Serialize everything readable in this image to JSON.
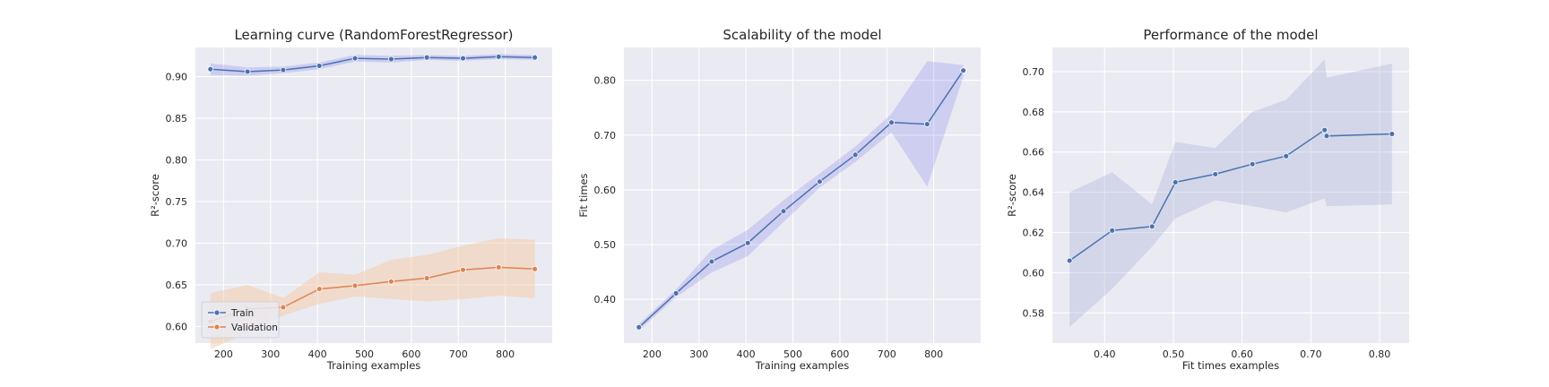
{
  "chart_data": [
    {
      "type": "line",
      "title": "Learning curve (RandomForestRegressor)",
      "xlabel": "Training examples",
      "ylabel": "R²-score",
      "xlim": [
        140,
        900
      ],
      "ylim": [
        0.58,
        0.935
      ],
      "xticks": [
        200,
        300,
        400,
        500,
        600,
        700,
        800
      ],
      "yticks": [
        0.6,
        0.65,
        0.7,
        0.75,
        0.8,
        0.85,
        0.9
      ],
      "grid": true,
      "legend": "bottom-left",
      "series": [
        {
          "name": "Train",
          "color": "#4c72b0",
          "x": [
            172,
            251,
            327,
            404,
            480,
            557,
            633,
            710,
            786,
            863
          ],
          "y": [
            0.909,
            0.906,
            0.908,
            0.913,
            0.922,
            0.921,
            0.923,
            0.922,
            0.924,
            0.923
          ],
          "lower": [
            0.902,
            0.901,
            0.904,
            0.909,
            0.918,
            0.917,
            0.92,
            0.919,
            0.921,
            0.92
          ],
          "upper": [
            0.916,
            0.911,
            0.912,
            0.917,
            0.926,
            0.925,
            0.926,
            0.925,
            0.927,
            0.926
          ]
        },
        {
          "name": "Validation",
          "color": "#dd8452",
          "x": [
            172,
            251,
            327,
            404,
            480,
            557,
            633,
            710,
            786,
            863
          ],
          "y": [
            0.606,
            0.621,
            0.623,
            0.645,
            0.649,
            0.654,
            0.658,
            0.668,
            0.671,
            0.669
          ],
          "lower": [
            0.573,
            0.592,
            0.613,
            0.627,
            0.636,
            0.633,
            0.63,
            0.633,
            0.637,
            0.634
          ],
          "upper": [
            0.64,
            0.65,
            0.634,
            0.665,
            0.662,
            0.68,
            0.686,
            0.697,
            0.706,
            0.704
          ]
        }
      ]
    },
    {
      "type": "line",
      "title": "Scalability of the model",
      "xlabel": "Training examples",
      "ylabel": "Fit times",
      "xlim": [
        140,
        900
      ],
      "ylim": [
        0.32,
        0.86
      ],
      "xticks": [
        200,
        300,
        400,
        500,
        600,
        700,
        800
      ],
      "yticks": [
        0.4,
        0.5,
        0.6,
        0.7,
        0.8
      ],
      "grid": true,
      "series": [
        {
          "color": "#4c72b0",
          "x": [
            172,
            251,
            327,
            404,
            480,
            557,
            633,
            710,
            786,
            863
          ],
          "y": [
            0.349,
            0.411,
            0.469,
            0.503,
            0.561,
            0.615,
            0.664,
            0.723,
            0.72,
            0.818
          ],
          "lower": [
            0.343,
            0.404,
            0.449,
            0.479,
            0.541,
            0.604,
            0.651,
            0.705,
            0.606,
            0.806
          ],
          "upper": [
            0.355,
            0.418,
            0.49,
            0.527,
            0.581,
            0.63,
            0.679,
            0.739,
            0.835,
            0.828
          ]
        }
      ]
    },
    {
      "type": "line",
      "title": "Performance of the model",
      "xlabel": "Fit times examples",
      "ylabel": "R²-score",
      "xlim": [
        0.324,
        0.843
      ],
      "ylim": [
        0.565,
        0.712
      ],
      "xticks": [
        0.4,
        0.5,
        0.6,
        0.7,
        0.8
      ],
      "yticks": [
        0.58,
        0.6,
        0.62,
        0.64,
        0.66,
        0.68,
        0.7
      ],
      "grid": true,
      "series": [
        {
          "color": "#4c72b0",
          "x": [
            0.349,
            0.411,
            0.469,
            0.503,
            0.561,
            0.615,
            0.664,
            0.72,
            0.723,
            0.818
          ],
          "y": [
            0.606,
            0.621,
            0.623,
            0.645,
            0.649,
            0.654,
            0.658,
            0.671,
            0.668,
            0.669
          ],
          "lower": [
            0.573,
            0.592,
            0.613,
            0.627,
            0.636,
            0.633,
            0.63,
            0.637,
            0.633,
            0.634
          ],
          "upper": [
            0.64,
            0.65,
            0.634,
            0.665,
            0.662,
            0.68,
            0.686,
            0.706,
            0.697,
            0.704
          ]
        }
      ]
    }
  ]
}
